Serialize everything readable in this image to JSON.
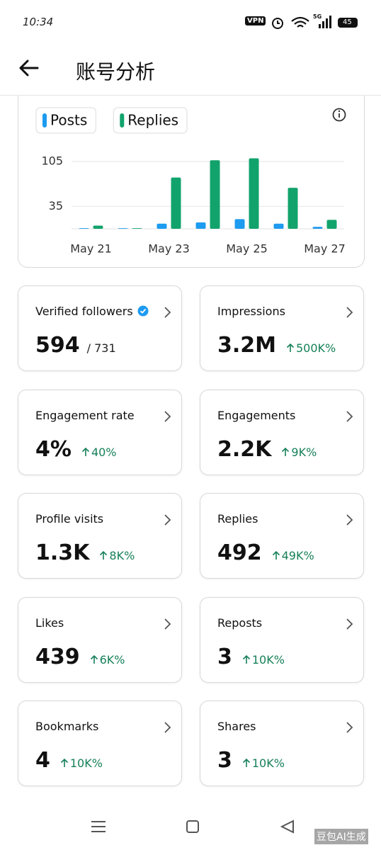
{
  "status_bar": {
    "time": "10:34",
    "vpn": "VPN",
    "network": "5G",
    "battery": "45"
  },
  "header": {
    "title": "账号分析"
  },
  "chart_data": {
    "type": "bar",
    "categories": [
      "May 21",
      null,
      "May 23",
      null,
      "May 25",
      null,
      "May 27"
    ],
    "series": [
      {
        "name": "Posts",
        "color": "#1d9bf0",
        "values": [
          1,
          1,
          8,
          10,
          15,
          8,
          3
        ]
      },
      {
        "name": "Replies",
        "color": "#12a36c",
        "values": [
          5,
          1,
          80,
          107,
          110,
          64,
          14
        ]
      }
    ],
    "ylim": [
      0,
      115
    ],
    "yticks": [
      35,
      105
    ],
    "grid": true,
    "legend": "top-left"
  },
  "cards": [
    {
      "title": "Verified followers",
      "value": "594",
      "total": "/ 731",
      "verified": true
    },
    {
      "title": "Impressions",
      "value": "3.2M",
      "change": "500K%"
    },
    {
      "title": "Engagement rate",
      "value": "4%",
      "change": "40%"
    },
    {
      "title": "Engagements",
      "value": "2.2K",
      "change": "9K%"
    },
    {
      "title": "Profile visits",
      "value": "1.3K",
      "change": "8K%"
    },
    {
      "title": "Replies",
      "value": "492",
      "change": "49K%"
    },
    {
      "title": "Likes",
      "value": "439",
      "change": "6K%"
    },
    {
      "title": "Reposts",
      "value": "3",
      "change": "10K%"
    },
    {
      "title": "Bookmarks",
      "value": "4",
      "change": "10K%"
    },
    {
      "title": "Shares",
      "value": "3",
      "change": "10K%"
    }
  ],
  "watermark": "豆包AI生成"
}
